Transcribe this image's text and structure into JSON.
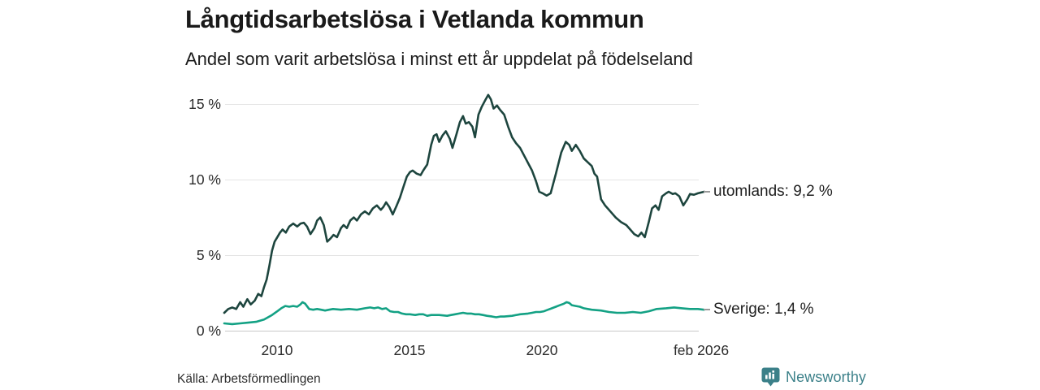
{
  "header": {
    "title": "Långtidsarbetslösa i Vetlanda kommun",
    "subtitle": "Andel som varit arbetslösa i minst ett år uppdelat på födelseland"
  },
  "footer": {
    "source": "Källa: Arbetsförmedlingen",
    "brand": "Newsworthy",
    "brand_color": "#3b8089",
    "brand_icon": "newsworthy-bar-chart-bubble-icon"
  },
  "chart_data": {
    "type": "line",
    "title": "Långtidsarbetslösa i Vetlanda kommun",
    "subtitle": "Andel som varit arbetslösa i minst ett år uppdelat på födelseland",
    "xlabel": "",
    "ylabel": "",
    "grid": "horizontal",
    "legend_position": "right-end-labels",
    "xlim": [
      2008.0,
      2026.17
    ],
    "ylim": [
      0,
      15.8
    ],
    "y_tick_labels": [
      "15 %",
      "10 %",
      "5 %",
      "0 %"
    ],
    "y_tick_values": [
      15,
      10,
      5,
      0
    ],
    "x_tick_labels": [
      "2010",
      "2015",
      "2020",
      "feb 2026"
    ],
    "x_tick_values": [
      2010,
      2015,
      2020,
      2026.08
    ],
    "series": [
      {
        "name": "utomlands",
        "label": "utomlands: 9,2 %",
        "last_value": "9,2 %",
        "color": "#1d453e",
        "points": [
          [
            2008.0,
            1.2
          ],
          [
            2008.15,
            1.45
          ],
          [
            2008.3,
            1.55
          ],
          [
            2008.45,
            1.45
          ],
          [
            2008.6,
            1.9
          ],
          [
            2008.72,
            1.6
          ],
          [
            2008.87,
            2.1
          ],
          [
            2009.0,
            1.75
          ],
          [
            2009.15,
            2.0
          ],
          [
            2009.28,
            2.45
          ],
          [
            2009.4,
            2.3
          ],
          [
            2009.5,
            2.9
          ],
          [
            2009.6,
            3.4
          ],
          [
            2009.7,
            4.3
          ],
          [
            2009.8,
            5.3
          ],
          [
            2009.9,
            5.9
          ],
          [
            2010.0,
            6.2
          ],
          [
            2010.1,
            6.5
          ],
          [
            2010.2,
            6.7
          ],
          [
            2010.32,
            6.5
          ],
          [
            2010.45,
            6.9
          ],
          [
            2010.6,
            7.1
          ],
          [
            2010.75,
            6.9
          ],
          [
            2010.88,
            7.1
          ],
          [
            2011.0,
            7.15
          ],
          [
            2011.12,
            6.9
          ],
          [
            2011.25,
            6.4
          ],
          [
            2011.4,
            6.8
          ],
          [
            2011.5,
            7.3
          ],
          [
            2011.62,
            7.5
          ],
          [
            2011.75,
            7.0
          ],
          [
            2011.88,
            5.9
          ],
          [
            2012.0,
            6.1
          ],
          [
            2012.12,
            6.35
          ],
          [
            2012.25,
            6.2
          ],
          [
            2012.4,
            6.8
          ],
          [
            2012.5,
            7.0
          ],
          [
            2012.62,
            6.8
          ],
          [
            2012.75,
            7.3
          ],
          [
            2012.88,
            7.5
          ],
          [
            2013.0,
            7.3
          ],
          [
            2013.15,
            7.7
          ],
          [
            2013.3,
            7.9
          ],
          [
            2013.45,
            7.7
          ],
          [
            2013.6,
            8.1
          ],
          [
            2013.75,
            8.3
          ],
          [
            2013.9,
            8.0
          ],
          [
            2014.0,
            8.2
          ],
          [
            2014.1,
            8.5
          ],
          [
            2014.22,
            8.2
          ],
          [
            2014.35,
            7.7
          ],
          [
            2014.5,
            8.3
          ],
          [
            2014.62,
            8.8
          ],
          [
            2014.75,
            9.5
          ],
          [
            2014.88,
            10.2
          ],
          [
            2015.0,
            10.5
          ],
          [
            2015.1,
            10.6
          ],
          [
            2015.25,
            10.4
          ],
          [
            2015.4,
            10.3
          ],
          [
            2015.5,
            10.6
          ],
          [
            2015.65,
            11.0
          ],
          [
            2015.8,
            12.3
          ],
          [
            2015.9,
            12.9
          ],
          [
            2016.0,
            13.0
          ],
          [
            2016.1,
            12.5
          ],
          [
            2016.22,
            12.9
          ],
          [
            2016.35,
            13.2
          ],
          [
            2016.5,
            12.7
          ],
          [
            2016.6,
            12.1
          ],
          [
            2016.75,
            13.0
          ],
          [
            2016.88,
            13.8
          ],
          [
            2017.0,
            14.2
          ],
          [
            2017.1,
            13.7
          ],
          [
            2017.22,
            13.8
          ],
          [
            2017.35,
            13.5
          ],
          [
            2017.45,
            12.8
          ],
          [
            2017.58,
            14.3
          ],
          [
            2017.7,
            14.8
          ],
          [
            2017.82,
            15.2
          ],
          [
            2017.95,
            15.6
          ],
          [
            2018.05,
            15.3
          ],
          [
            2018.15,
            14.7
          ],
          [
            2018.28,
            14.9
          ],
          [
            2018.4,
            14.6
          ],
          [
            2018.55,
            14.3
          ],
          [
            2018.7,
            13.5
          ],
          [
            2018.85,
            12.8
          ],
          [
            2019.0,
            12.4
          ],
          [
            2019.15,
            12.1
          ],
          [
            2019.3,
            11.6
          ],
          [
            2019.45,
            11.1
          ],
          [
            2019.6,
            10.6
          ],
          [
            2019.75,
            9.9
          ],
          [
            2019.87,
            9.2
          ],
          [
            2020.0,
            9.1
          ],
          [
            2020.15,
            8.95
          ],
          [
            2020.3,
            9.1
          ],
          [
            2020.5,
            10.4
          ],
          [
            2020.7,
            11.8
          ],
          [
            2020.87,
            12.5
          ],
          [
            2021.0,
            12.3
          ],
          [
            2021.1,
            11.9
          ],
          [
            2021.25,
            12.3
          ],
          [
            2021.4,
            11.9
          ],
          [
            2021.55,
            11.4
          ],
          [
            2021.7,
            11.15
          ],
          [
            2021.85,
            10.9
          ],
          [
            2021.95,
            10.4
          ],
          [
            2022.05,
            10.2
          ],
          [
            2022.2,
            8.7
          ],
          [
            2022.35,
            8.3
          ],
          [
            2022.55,
            7.9
          ],
          [
            2022.75,
            7.5
          ],
          [
            2022.95,
            7.2
          ],
          [
            2023.15,
            7.0
          ],
          [
            2023.3,
            6.7
          ],
          [
            2023.45,
            6.4
          ],
          [
            2023.6,
            6.25
          ],
          [
            2023.72,
            6.5
          ],
          [
            2023.85,
            6.2
          ],
          [
            2024.0,
            7.2
          ],
          [
            2024.12,
            8.1
          ],
          [
            2024.25,
            8.3
          ],
          [
            2024.37,
            8.0
          ],
          [
            2024.5,
            8.9
          ],
          [
            2024.65,
            9.1
          ],
          [
            2024.75,
            9.2
          ],
          [
            2024.9,
            9.05
          ],
          [
            2025.0,
            9.1
          ],
          [
            2025.15,
            8.9
          ],
          [
            2025.3,
            8.3
          ],
          [
            2025.45,
            8.7
          ],
          [
            2025.55,
            9.05
          ],
          [
            2025.7,
            9.0
          ],
          [
            2025.85,
            9.1
          ],
          [
            2026.08,
            9.2
          ]
        ]
      },
      {
        "name": "Sverige",
        "label": "Sverige: 1,4 %",
        "last_value": "1,4 %",
        "color": "#13a184",
        "points": [
          [
            2008.0,
            0.5
          ],
          [
            2008.3,
            0.45
          ],
          [
            2008.6,
            0.5
          ],
          [
            2008.9,
            0.55
          ],
          [
            2009.2,
            0.6
          ],
          [
            2009.5,
            0.75
          ],
          [
            2009.65,
            0.9
          ],
          [
            2009.8,
            1.05
          ],
          [
            2010.0,
            1.3
          ],
          [
            2010.15,
            1.5
          ],
          [
            2010.3,
            1.65
          ],
          [
            2010.45,
            1.6
          ],
          [
            2010.6,
            1.65
          ],
          [
            2010.75,
            1.6
          ],
          [
            2010.87,
            1.75
          ],
          [
            2010.95,
            1.9
          ],
          [
            2011.05,
            1.8
          ],
          [
            2011.2,
            1.45
          ],
          [
            2011.35,
            1.4
          ],
          [
            2011.5,
            1.45
          ],
          [
            2011.65,
            1.4
          ],
          [
            2011.8,
            1.35
          ],
          [
            2011.95,
            1.4
          ],
          [
            2012.1,
            1.45
          ],
          [
            2012.4,
            1.4
          ],
          [
            2012.7,
            1.45
          ],
          [
            2013.0,
            1.4
          ],
          [
            2013.3,
            1.5
          ],
          [
            2013.5,
            1.55
          ],
          [
            2013.65,
            1.5
          ],
          [
            2013.8,
            1.55
          ],
          [
            2013.95,
            1.45
          ],
          [
            2014.1,
            1.5
          ],
          [
            2014.25,
            1.3
          ],
          [
            2014.4,
            1.25
          ],
          [
            2014.55,
            1.25
          ],
          [
            2014.7,
            1.15
          ],
          [
            2014.85,
            1.1
          ],
          [
            2015.0,
            1.1
          ],
          [
            2015.2,
            1.05
          ],
          [
            2015.35,
            1.1
          ],
          [
            2015.5,
            1.1
          ],
          [
            2015.65,
            1.0
          ],
          [
            2015.8,
            1.05
          ],
          [
            2016.1,
            1.05
          ],
          [
            2016.4,
            1.0
          ],
          [
            2016.55,
            1.05
          ],
          [
            2016.7,
            1.1
          ],
          [
            2016.85,
            1.15
          ],
          [
            2017.0,
            1.2
          ],
          [
            2017.15,
            1.15
          ],
          [
            2017.3,
            1.15
          ],
          [
            2017.45,
            1.1
          ],
          [
            2017.6,
            1.1
          ],
          [
            2017.75,
            1.05
          ],
          [
            2017.9,
            1.0
          ],
          [
            2018.1,
            0.95
          ],
          [
            2018.25,
            0.9
          ],
          [
            2018.4,
            0.95
          ],
          [
            2018.55,
            0.95
          ],
          [
            2018.85,
            1.0
          ],
          [
            2019.15,
            1.1
          ],
          [
            2019.45,
            1.15
          ],
          [
            2019.6,
            1.2
          ],
          [
            2019.75,
            1.25
          ],
          [
            2019.9,
            1.25
          ],
          [
            2020.05,
            1.3
          ],
          [
            2020.2,
            1.4
          ],
          [
            2020.35,
            1.5
          ],
          [
            2020.5,
            1.6
          ],
          [
            2020.65,
            1.7
          ],
          [
            2020.8,
            1.8
          ],
          [
            2020.9,
            1.9
          ],
          [
            2021.0,
            1.85
          ],
          [
            2021.1,
            1.7
          ],
          [
            2021.25,
            1.65
          ],
          [
            2021.4,
            1.6
          ],
          [
            2021.55,
            1.5
          ],
          [
            2021.7,
            1.45
          ],
          [
            2021.85,
            1.4
          ],
          [
            2022.2,
            1.35
          ],
          [
            2022.5,
            1.25
          ],
          [
            2022.8,
            1.2
          ],
          [
            2023.1,
            1.2
          ],
          [
            2023.4,
            1.25
          ],
          [
            2023.7,
            1.2
          ],
          [
            2024.0,
            1.3
          ],
          [
            2024.3,
            1.45
          ],
          [
            2024.65,
            1.5
          ],
          [
            2024.95,
            1.55
          ],
          [
            2025.25,
            1.5
          ],
          [
            2025.55,
            1.45
          ],
          [
            2025.85,
            1.45
          ],
          [
            2026.08,
            1.4
          ]
        ]
      }
    ]
  }
}
